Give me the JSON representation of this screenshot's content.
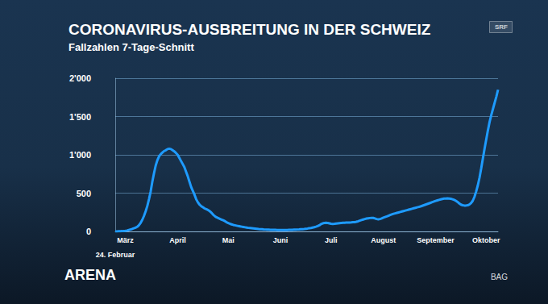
{
  "chart_data": {
    "type": "line",
    "title": "CORONAVIRUS-AUSBREITUNG IN DER SCHWEIZ",
    "subtitle": "Fallzahlen 7-Tage-Schnitt",
    "branding": [
      "ARENA",
      "SRF"
    ],
    "source": "BAG",
    "color": "#1e9bff",
    "grid": true,
    "ylim": [
      0,
      2000
    ],
    "yticks": [
      0,
      500,
      {
        "value": 1000,
        "label": "1'000"
      },
      {
        "value": 1500,
        "label": "1'500"
      },
      {
        "value": 2000,
        "label": "2'000"
      }
    ],
    "categories": [
      "24. Februar",
      null,
      null,
      null,
      null,
      null,
      "März",
      null,
      null,
      null,
      null,
      null,
      null,
      null,
      null,
      null,
      null,
      null,
      null,
      null,
      null,
      null,
      null,
      null,
      null,
      null,
      null,
      null,
      null,
      null,
      null,
      null,
      null,
      null,
      null,
      null,
      null,
      "April",
      null,
      null,
      null,
      null,
      null,
      null,
      null,
      null,
      null,
      null,
      null,
      null,
      null,
      null,
      null,
      null,
      null,
      null,
      null,
      null,
      null,
      null,
      null,
      null,
      null,
      null,
      null,
      null,
      null,
      "Mai",
      null,
      null,
      null,
      null,
      null,
      null,
      null,
      null,
      null,
      null,
      null,
      null,
      null,
      null,
      null,
      null,
      null,
      null,
      null,
      null,
      null,
      null,
      null,
      null,
      null,
      null,
      null,
      null,
      null,
      null,
      "Juni",
      null,
      null,
      null,
      null,
      null,
      null,
      null,
      null,
      null,
      null,
      null,
      null,
      null,
      null,
      null,
      null,
      null,
      null,
      null,
      null,
      null,
      null,
      null,
      null,
      null,
      null,
      null,
      null,
      null,
      "Juli",
      null,
      null,
      null,
      null,
      null,
      null,
      null,
      null,
      null,
      null,
      null,
      null,
      null,
      null,
      null,
      null,
      null,
      null,
      null,
      null,
      null,
      null,
      null,
      null,
      null,
      null,
      null,
      null,
      null,
      null,
      "August",
      null,
      null,
      null,
      null,
      null,
      null,
      null,
      null,
      null,
      null,
      null,
      null,
      null,
      null,
      null,
      null,
      null,
      null,
      null,
      null,
      null,
      null,
      null,
      null,
      null,
      null,
      null,
      null,
      null,
      null,
      "September",
      null,
      null,
      null,
      null,
      null,
      null,
      null,
      null,
      null,
      null,
      null,
      null,
      null,
      null,
      null,
      null,
      null,
      null,
      null,
      null,
      null,
      null,
      null,
      null,
      null,
      null,
      null,
      null,
      null,
      "Oktober",
      null,
      null,
      null,
      null,
      null,
      null,
      null
    ],
    "values": [
      0,
      1,
      2,
      3,
      4,
      6,
      8,
      12,
      18,
      25,
      32,
      40,
      48,
      60,
      80,
      110,
      150,
      200,
      260,
      330,
      420,
      520,
      650,
      760,
      860,
      930,
      980,
      1010,
      1030,
      1050,
      1060,
      1075,
      1080,
      1075,
      1060,
      1045,
      1025,
      1000,
      960,
      920,
      880,
      840,
      780,
      720,
      650,
      580,
      530,
      480,
      420,
      380,
      350,
      330,
      315,
      300,
      290,
      280,
      265,
      245,
      220,
      200,
      185,
      175,
      165,
      155,
      145,
      135,
      120,
      110,
      100,
      92,
      85,
      80,
      75,
      70,
      66,
      62,
      58,
      54,
      50,
      46,
      44,
      42,
      40,
      38,
      35,
      32,
      30,
      28,
      26,
      25,
      24,
      23,
      22,
      21,
      20,
      20,
      19,
      19,
      18,
      18,
      18,
      18,
      19,
      20,
      21,
      22,
      23,
      24,
      25,
      26,
      28,
      30,
      32,
      35,
      38,
      42,
      45,
      50,
      55,
      62,
      70,
      80,
      95,
      105,
      110,
      112,
      110,
      105,
      100,
      98,
      100,
      103,
      106,
      108,
      110,
      112,
      113,
      115,
      116,
      117,
      118,
      120,
      122,
      126,
      132,
      140,
      148,
      155,
      162,
      168,
      172,
      175,
      177,
      176,
      170,
      162,
      158,
      162,
      170,
      180,
      188,
      196,
      205,
      214,
      222,
      230,
      236,
      242,
      248,
      254,
      260,
      266,
      272,
      278,
      284,
      290,
      296,
      302,
      308,
      314,
      320,
      326,
      334,
      342,
      350,
      358,
      366,
      374,
      382,
      390,
      398,
      405,
      412,
      418,
      424,
      428,
      430,
      432,
      430,
      426,
      420,
      412,
      400,
      385,
      365,
      350,
      342,
      338,
      338,
      342,
      352,
      370,
      400,
      450,
      520,
      600,
      700,
      820,
      950,
      1080,
      1200,
      1320,
      1430,
      1520,
      1600,
      1680,
      1760,
      1850
    ]
  }
}
